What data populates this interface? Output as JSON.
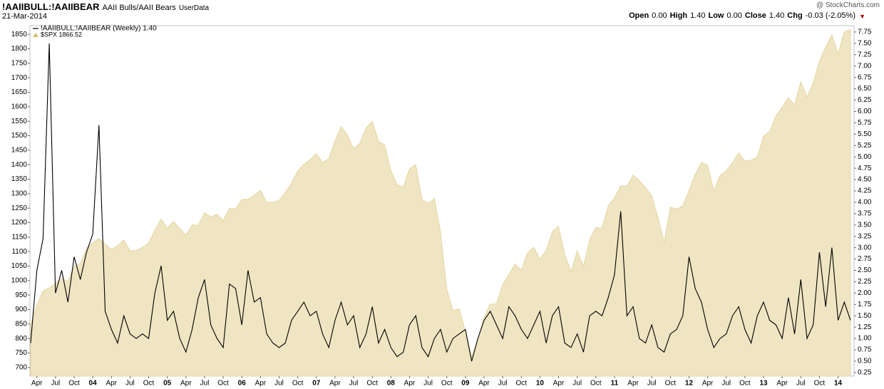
{
  "header": {
    "symbol": "!AAIIBULL:!AAIIBEAR",
    "description": "AAII Bulls/AAII Bears",
    "source": "UserData",
    "date": "21-Mar-2014",
    "credit": "@ StockCharts.com",
    "quote": [
      {
        "label": "Open",
        "value": "0.00"
      },
      {
        "label": "High",
        "value": "1.40"
      },
      {
        "label": "Low",
        "value": "0.00"
      },
      {
        "label": "Close",
        "value": "1.40"
      },
      {
        "label": "Chg",
        "value": "-0.03 (-2.05%)"
      }
    ]
  },
  "chart_data": {
    "type": "line",
    "categories": [
      null,
      "Apr",
      null,
      null,
      "Jul",
      null,
      null,
      "Oct",
      null,
      null,
      "04",
      null,
      null,
      "Apr",
      null,
      null,
      "Jul",
      null,
      null,
      "Oct",
      null,
      null,
      "05",
      null,
      null,
      "Apr",
      null,
      null,
      "Jul",
      null,
      null,
      "Oct",
      null,
      null,
      "06",
      null,
      null,
      "Apr",
      null,
      null,
      "Jul",
      null,
      null,
      "Oct",
      null,
      null,
      "07",
      null,
      null,
      "Apr",
      null,
      null,
      "Jul",
      null,
      null,
      "Oct",
      null,
      null,
      "08",
      null,
      null,
      "Apr",
      null,
      null,
      "Jul",
      null,
      null,
      "Oct",
      null,
      null,
      "09",
      null,
      null,
      "Apr",
      null,
      null,
      "Jul",
      null,
      null,
      "Oct",
      null,
      null,
      "10",
      null,
      null,
      "Apr",
      null,
      null,
      "Jul",
      null,
      null,
      "Oct",
      null,
      null,
      "11",
      null,
      null,
      "Apr",
      null,
      null,
      "Jul",
      null,
      null,
      "Oct",
      null,
      null,
      "12",
      null,
      null,
      "Apr",
      null,
      null,
      "Jul",
      null,
      null,
      "Oct",
      null,
      null,
      "13",
      null,
      null,
      "Apr",
      null,
      null,
      "Jul",
      null,
      null,
      "Oct",
      null,
      null,
      "14",
      null,
      null
    ],
    "series": [
      {
        "name": "$SPX 1866.52",
        "type": "area",
        "color": "#efe5c2",
        "axis": "y",
        "values": [
          848,
          916,
          964,
          975,
          990,
          1008,
          996,
          1050,
          1058,
          1112,
          1131,
          1145,
          1126,
          1107,
          1121,
          1141,
          1102,
          1104,
          1115,
          1130,
          1174,
          1212,
          1181,
          1204,
          1181,
          1157,
          1192,
          1191,
          1234,
          1220,
          1229,
          1207,
          1249,
          1248,
          1280,
          1281,
          1295,
          1311,
          1270,
          1270,
          1277,
          1304,
          1336,
          1378,
          1401,
          1418,
          1438,
          1407,
          1421,
          1482,
          1531,
          1503,
          1455,
          1474,
          1527,
          1549,
          1481,
          1468,
          1379,
          1331,
          1323,
          1386,
          1400,
          1280,
          1267,
          1283,
          1166,
          969,
          896,
          903,
          826,
          735,
          798,
          873,
          919,
          919,
          987,
          1021,
          1057,
          1036,
          1096,
          1115,
          1074,
          1104,
          1169,
          1187,
          1089,
          1031,
          1102,
          1049,
          1141,
          1183,
          1181,
          1258,
          1286,
          1327,
          1326,
          1364,
          1345,
          1321,
          1292,
          1219,
          1131,
          1253,
          1247,
          1258,
          1312,
          1366,
          1408,
          1398,
          1310,
          1362,
          1379,
          1407,
          1441,
          1412,
          1416,
          1426,
          1498,
          1515,
          1569,
          1598,
          1631,
          1606,
          1686,
          1633,
          1682,
          1757,
          1806,
          1848,
          1783,
          1859,
          1866
        ]
      },
      {
        "name": "!AAIIBULL:!AAIIBEAR (Weekly) 1.40",
        "type": "line",
        "color": "#000000",
        "axis": "y2",
        "values": [
          0.9,
          2.5,
          3.2,
          7.5,
          2.0,
          2.5,
          1.8,
          2.8,
          2.3,
          2.9,
          3.3,
          5.7,
          1.6,
          1.2,
          0.9,
          1.5,
          1.1,
          1.0,
          1.1,
          1.0,
          2.0,
          2.6,
          1.4,
          1.6,
          1.0,
          0.7,
          1.2,
          1.9,
          2.3,
          1.3,
          1.0,
          0.8,
          2.2,
          2.1,
          1.3,
          2.5,
          1.8,
          1.9,
          1.1,
          0.9,
          0.8,
          0.9,
          1.4,
          1.6,
          1.8,
          1.5,
          1.6,
          1.1,
          0.8,
          1.4,
          1.8,
          1.3,
          1.5,
          0.8,
          1.1,
          1.7,
          0.9,
          1.2,
          0.8,
          0.6,
          0.7,
          1.3,
          1.5,
          0.8,
          0.6,
          1.0,
          1.2,
          0.7,
          1.0,
          1.1,
          1.2,
          0.5,
          1.0,
          1.4,
          1.6,
          1.3,
          1.0,
          1.7,
          1.5,
          1.2,
          1.0,
          1.3,
          1.6,
          0.9,
          1.5,
          1.7,
          0.9,
          0.8,
          1.1,
          0.7,
          1.5,
          1.6,
          1.5,
          1.9,
          2.4,
          3.8,
          1.5,
          1.7,
          1.0,
          0.9,
          1.3,
          0.8,
          0.7,
          1.1,
          1.2,
          1.5,
          2.8,
          2.1,
          1.8,
          1.2,
          0.8,
          1.0,
          1.1,
          1.5,
          1.7,
          1.2,
          0.9,
          1.5,
          1.8,
          1.4,
          1.3,
          1.0,
          1.9,
          1.1,
          2.3,
          1.0,
          1.3,
          2.9,
          1.7,
          3.0,
          1.4,
          1.8,
          1.4
        ]
      }
    ],
    "ylim": [
      670,
      1880
    ],
    "yticks": [
      700,
      750,
      800,
      850,
      900,
      950,
      1000,
      1050,
      1100,
      1150,
      1200,
      1250,
      1300,
      1350,
      1400,
      1450,
      1500,
      1550,
      1600,
      1650,
      1700,
      1750,
      1800,
      1850
    ],
    "y2lim": [
      0.17,
      7.89
    ],
    "y2ticks": [
      0.25,
      {
        "value": 0.5,
        "label": "0.50"
      },
      0.75,
      {
        "value": 1,
        "label": "1.00"
      },
      1.25,
      {
        "value": 1.5,
        "label": "1.50"
      },
      1.75,
      {
        "value": 2,
        "label": "2.00"
      },
      2.25,
      {
        "value": 2.5,
        "label": "2.50"
      },
      2.75,
      {
        "value": 3,
        "label": "3.00"
      },
      3.25,
      {
        "value": 3.5,
        "label": "3.50"
      },
      3.75,
      {
        "value": 4,
        "label": "4.00"
      },
      4.25,
      {
        "value": 4.5,
        "label": "4.50"
      },
      4.75,
      {
        "value": 5,
        "label": "5.00"
      },
      5.25,
      {
        "value": 5.5,
        "label": "5.50"
      },
      5.75,
      {
        "value": 6,
        "label": "6.00"
      },
      6.25,
      {
        "value": 6.5,
        "label": "6.50"
      },
      6.75,
      {
        "value": 7,
        "label": "7.00"
      },
      7.25,
      {
        "value": 7.5,
        "label": "7.50"
      },
      7.75
    ],
    "grid": false
  }
}
